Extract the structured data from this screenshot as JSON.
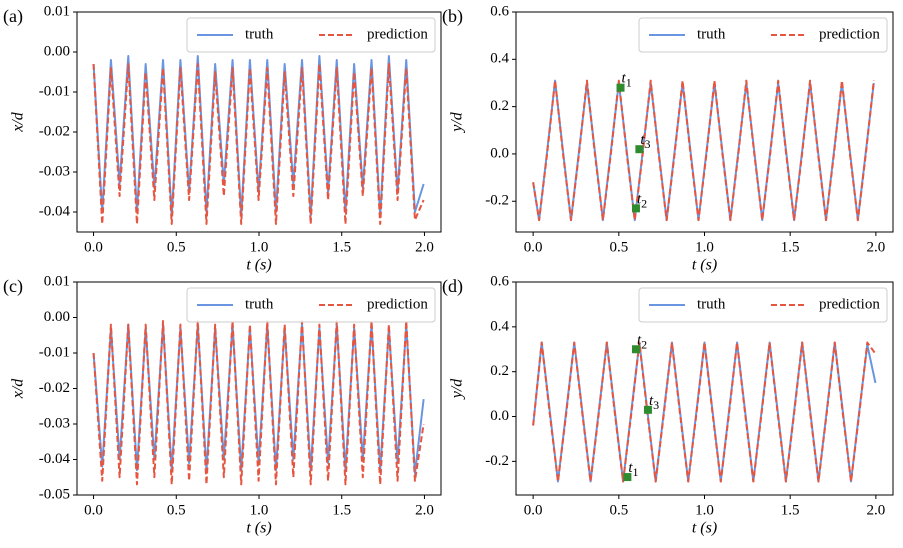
{
  "chart_data": [
    {
      "type": "line",
      "label": "(a)",
      "xlabel": "t (s)",
      "ylabel": "x/d",
      "legend": "upper right",
      "xlim": [
        -0.1,
        2.1
      ],
      "ylim": [
        -0.045,
        0.01
      ],
      "xticks": [
        {
          "value": 0,
          "label": "0.0"
        },
        0.5,
        {
          "value": 1,
          "label": "1.0"
        },
        1.5,
        {
          "value": 2,
          "label": "2.0"
        }
      ],
      "yticks": [
        0.01,
        {
          "value": 0,
          "label": "0.00"
        },
        -0.01,
        -0.02,
        -0.03,
        -0.04
      ],
      "x": [
        0,
        0.0525,
        0.105,
        0.1575,
        0.21,
        0.2625,
        0.315,
        0.3675,
        0.42,
        0.4725,
        0.525,
        0.5775,
        0.63,
        0.6825,
        0.735,
        0.7875,
        0.84,
        0.8925,
        0.945,
        0.9975,
        1.05,
        1.1025,
        1.155,
        1.2075,
        1.26,
        1.3125,
        1.365,
        1.4175,
        1.47,
        1.5225,
        1.575,
        1.6275,
        1.68,
        1.7325,
        1.785,
        1.8375,
        1.89,
        1.9425,
        1.995
      ],
      "series": [
        {
          "name": "truth",
          "color": "#6a95e0",
          "linestyle": "solid",
          "values": [
            -0.003,
            -0.04,
            -0.002,
            -0.033,
            -0.001,
            -0.04,
            -0.003,
            -0.034,
            -0.002,
            -0.041,
            -0.002,
            -0.035,
            -0.001,
            -0.04,
            -0.003,
            -0.033,
            -0.002,
            -0.041,
            -0.002,
            -0.035,
            -0.002,
            -0.04,
            -0.003,
            -0.033,
            -0.002,
            -0.041,
            -0.001,
            -0.035,
            -0.002,
            -0.04,
            -0.003,
            -0.034,
            -0.002,
            -0.041,
            -0.001,
            -0.035,
            -0.002,
            -0.04,
            -0.033
          ]
        },
        {
          "name": "prediction",
          "color": "#e5553f",
          "linestyle": "dashed",
          "values": [
            -0.003,
            -0.043,
            -0.004,
            -0.036,
            -0.003,
            -0.043,
            -0.005,
            -0.037,
            -0.004,
            -0.043,
            -0.004,
            -0.037,
            -0.003,
            -0.043,
            -0.005,
            -0.036,
            -0.004,
            -0.043,
            -0.004,
            -0.037,
            -0.004,
            -0.043,
            -0.005,
            -0.036,
            -0.004,
            -0.043,
            -0.003,
            -0.037,
            -0.004,
            -0.043,
            -0.005,
            -0.036,
            -0.004,
            -0.043,
            -0.003,
            -0.037,
            -0.004,
            -0.042,
            -0.037
          ]
        }
      ]
    },
    {
      "type": "line",
      "label": "(b)",
      "xlabel": "t (s)",
      "ylabel": "y/d",
      "legend": "upper right",
      "xlim": [
        -0.1,
        2.1
      ],
      "ylim": [
        -0.33,
        0.6
      ],
      "xticks": [
        {
          "value": 0,
          "label": "0.0"
        },
        0.5,
        {
          "value": 1,
          "label": "1.0"
        },
        1.5,
        {
          "value": 2,
          "label": "2.0"
        }
      ],
      "yticks": [
        -0.2,
        {
          "value": 0,
          "label": "0.0"
        },
        0.2,
        0.4,
        0.6
      ],
      "x": [
        0,
        0.035,
        0.0815,
        0.128,
        0.1745,
        0.221,
        0.2675,
        0.314,
        0.3605,
        0.407,
        0.4535,
        0.5,
        0.5465,
        0.593,
        0.6395,
        0.686,
        0.7325,
        0.779,
        0.8255,
        0.872,
        0.9185,
        0.965,
        1.0115,
        1.058,
        1.1045,
        1.151,
        1.1975,
        1.244,
        1.2905,
        1.337,
        1.3835,
        1.43,
        1.4765,
        1.523,
        1.5695,
        1.616,
        1.6625,
        1.709,
        1.7555,
        1.802,
        1.8485,
        1.895,
        1.9415,
        1.988
      ],
      "series": [
        {
          "name": "truth",
          "color": "#6a95e0",
          "linestyle": "solid",
          "values": [
            -0.12,
            -0.28,
            0.01,
            0.31,
            0.01,
            -0.28,
            0.01,
            0.3,
            0.01,
            -0.28,
            0.01,
            0.3,
            0.01,
            -0.28,
            0.01,
            0.3,
            0.01,
            -0.28,
            0.01,
            0.3,
            0.01,
            -0.28,
            0.01,
            0.3,
            0.01,
            -0.28,
            0.01,
            0.3,
            0.01,
            -0.28,
            0.01,
            0.3,
            0.01,
            -0.28,
            0.01,
            0.3,
            0.01,
            -0.28,
            0.01,
            0.3,
            0.01,
            -0.28,
            0.01,
            0.3
          ]
        },
        {
          "name": "prediction",
          "color": "#e5553f",
          "linestyle": "dashed",
          "values": [
            -0.12,
            -0.28,
            0.0,
            0.31,
            0.0,
            -0.28,
            0.0,
            0.31,
            0.0,
            -0.28,
            0.0,
            0.31,
            0.0,
            -0.28,
            0.0,
            0.31,
            0.0,
            -0.28,
            0.0,
            0.31,
            0.0,
            -0.28,
            0.0,
            0.31,
            0.0,
            -0.28,
            0.0,
            0.31,
            0.0,
            -0.28,
            0.0,
            0.31,
            0.0,
            -0.28,
            0.0,
            0.31,
            0.0,
            -0.28,
            0.0,
            0.31,
            0.0,
            -0.28,
            0.0,
            0.31
          ]
        }
      ],
      "annotations": [
        {
          "text": "t",
          "sub": "1",
          "x": 0.51,
          "y": 0.28
        },
        {
          "text": "t",
          "sub": "2",
          "x": 0.6,
          "y": -0.23
        },
        {
          "text": "t",
          "sub": "3",
          "x": 0.62,
          "y": 0.02
        }
      ]
    },
    {
      "type": "line",
      "label": "(c)",
      "xlabel": "t (s)",
      "ylabel": "x/d",
      "legend": "upper right",
      "xlim": [
        -0.1,
        2.1
      ],
      "ylim": [
        -0.05,
        0.01
      ],
      "xticks": [
        {
          "value": 0,
          "label": "0.0"
        },
        0.5,
        {
          "value": 1,
          "label": "1.0"
        },
        1.5,
        {
          "value": 2,
          "label": "2.0"
        }
      ],
      "yticks": [
        0.01,
        {
          "value": 0,
          "label": "0.00"
        },
        -0.01,
        -0.02,
        -0.03,
        -0.04,
        -0.05
      ],
      "x": [
        0,
        0.0525,
        0.105,
        0.1575,
        0.21,
        0.2625,
        0.315,
        0.3675,
        0.42,
        0.4725,
        0.525,
        0.5775,
        0.63,
        0.6825,
        0.735,
        0.7875,
        0.84,
        0.8925,
        0.945,
        0.9975,
        1.05,
        1.1025,
        1.155,
        1.2075,
        1.26,
        1.3125,
        1.365,
        1.4175,
        1.47,
        1.5225,
        1.575,
        1.6275,
        1.68,
        1.7325,
        1.785,
        1.8375,
        1.89,
        1.9425,
        1.995
      ],
      "series": [
        {
          "name": "truth",
          "color": "#6a95e0",
          "linestyle": "solid",
          "values": [
            -0.01,
            -0.042,
            -0.003,
            -0.04,
            -0.002,
            -0.043,
            -0.003,
            -0.04,
            -0.002,
            -0.043,
            -0.003,
            -0.041,
            -0.002,
            -0.043,
            -0.003,
            -0.04,
            -0.002,
            -0.043,
            -0.003,
            -0.041,
            -0.002,
            -0.043,
            -0.003,
            -0.04,
            -0.002,
            -0.043,
            -0.003,
            -0.041,
            -0.002,
            -0.043,
            -0.003,
            -0.04,
            -0.002,
            -0.043,
            -0.003,
            -0.041,
            -0.002,
            -0.044,
            -0.023
          ]
        },
        {
          "name": "prediction",
          "color": "#e5553f",
          "linestyle": "dashed",
          "values": [
            -0.01,
            -0.046,
            -0.002,
            -0.045,
            -0.002,
            -0.047,
            -0.002,
            -0.045,
            -0.001,
            -0.047,
            -0.002,
            -0.046,
            -0.001,
            -0.047,
            -0.002,
            -0.045,
            -0.001,
            -0.047,
            -0.002,
            -0.046,
            -0.001,
            -0.047,
            -0.002,
            -0.045,
            -0.001,
            -0.047,
            -0.002,
            -0.046,
            -0.001,
            -0.047,
            -0.002,
            -0.045,
            -0.001,
            -0.047,
            -0.002,
            -0.046,
            -0.001,
            -0.046,
            -0.03
          ]
        }
      ]
    },
    {
      "type": "line",
      "label": "(d)",
      "xlabel": "t (s)",
      "ylabel": "y/d",
      "legend": "upper right",
      "xlim": [
        -0.1,
        2.1
      ],
      "ylim": [
        -0.35,
        0.6
      ],
      "xticks": [
        {
          "value": 0,
          "label": "0.0"
        },
        0.5,
        {
          "value": 1,
          "label": "1.0"
        },
        1.5,
        {
          "value": 2,
          "label": "2.0"
        }
      ],
      "yticks": [
        -0.2,
        {
          "value": 0,
          "label": "0.0"
        },
        0.2,
        0.4,
        0.6
      ],
      "x": [
        0,
        0.05,
        0.0975,
        0.145,
        0.1925,
        0.24,
        0.2875,
        0.335,
        0.3825,
        0.43,
        0.4775,
        0.525,
        0.5725,
        0.62,
        0.6675,
        0.715,
        0.7625,
        0.81,
        0.8575,
        0.905,
        0.9525,
        1.0,
        1.0475,
        1.095,
        1.1425,
        1.19,
        1.2375,
        1.285,
        1.3325,
        1.38,
        1.4275,
        1.475,
        1.5225,
        1.57,
        1.6175,
        1.665,
        1.7125,
        1.76,
        1.8075,
        1.855,
        1.9025,
        1.95,
        1.9975
      ],
      "series": [
        {
          "name": "truth",
          "color": "#6a95e0",
          "linestyle": "solid",
          "values": [
            -0.04,
            0.33,
            0.02,
            -0.29,
            0.02,
            0.33,
            0.02,
            -0.29,
            0.02,
            0.33,
            0.02,
            -0.29,
            0.02,
            0.33,
            0.02,
            -0.29,
            0.02,
            0.33,
            0.02,
            -0.29,
            0.02,
            0.33,
            0.02,
            -0.29,
            0.02,
            0.33,
            0.02,
            -0.29,
            0.02,
            0.33,
            0.02,
            -0.29,
            0.02,
            0.33,
            0.02,
            -0.29,
            0.02,
            0.33,
            0.02,
            -0.29,
            0.02,
            0.32,
            0.15
          ]
        },
        {
          "name": "prediction",
          "color": "#e5553f",
          "linestyle": "dashed",
          "values": [
            -0.04,
            0.33,
            0.01,
            -0.29,
            0.01,
            0.33,
            0.01,
            -0.29,
            0.01,
            0.33,
            0.01,
            -0.29,
            0.01,
            0.33,
            0.01,
            -0.29,
            0.01,
            0.33,
            0.01,
            -0.29,
            0.01,
            0.33,
            0.01,
            -0.29,
            0.01,
            0.33,
            0.01,
            -0.29,
            0.01,
            0.33,
            0.01,
            -0.29,
            0.01,
            0.33,
            0.01,
            -0.29,
            0.01,
            0.33,
            0.01,
            -0.29,
            0.01,
            0.33,
            0.28
          ]
        }
      ],
      "annotations": [
        {
          "text": "t",
          "sub": "1",
          "x": 0.55,
          "y": -0.27
        },
        {
          "text": "t",
          "sub": "2",
          "x": 0.6,
          "y": 0.3
        },
        {
          "text": "t",
          "sub": "3",
          "x": 0.67,
          "y": 0.03
        }
      ]
    }
  ]
}
